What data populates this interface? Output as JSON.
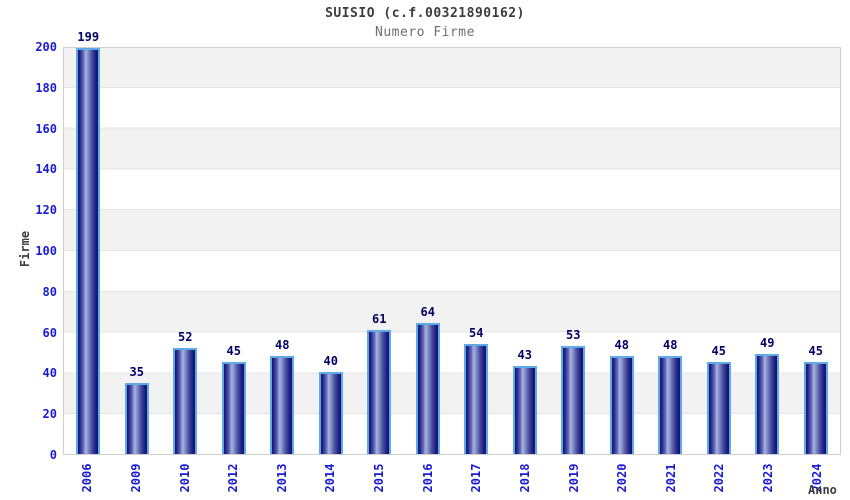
{
  "title": "SUISIO (c.f.00321890162)",
  "subtitle": "Numero Firme",
  "chart_data": {
    "type": "bar",
    "title": "SUISIO (c.f.00321890162)",
    "subtitle": "Numero Firme",
    "xlabel": "Anno",
    "ylabel": "Firme",
    "categories": [
      "2006",
      "2009",
      "2010",
      "2012",
      "2013",
      "2014",
      "2015",
      "2016",
      "2017",
      "2018",
      "2019",
      "2020",
      "2021",
      "2022",
      "2023",
      "2024"
    ],
    "values": [
      199,
      35,
      52,
      45,
      48,
      40,
      61,
      64,
      54,
      43,
      53,
      48,
      48,
      45,
      49,
      45
    ],
    "ylim": [
      0,
      200
    ],
    "yticks": [
      0,
      20,
      40,
      60,
      80,
      100,
      120,
      140,
      160,
      180,
      200
    ],
    "grid": "horizontal-bands",
    "legend": "none",
    "colors": {
      "bar_dark": "#12126e",
      "bar_highlight": "#aab3e0",
      "bar_outline": "#5ea9e6",
      "tick_label": "#1a1ad6",
      "value_label": "#000066",
      "band_gray": "#f2f2f2",
      "band_white": "#ffffff",
      "frame": "#cfcfcf",
      "title_color": "#3c3c3c",
      "subtitle_color": "#6e6e6e"
    }
  }
}
